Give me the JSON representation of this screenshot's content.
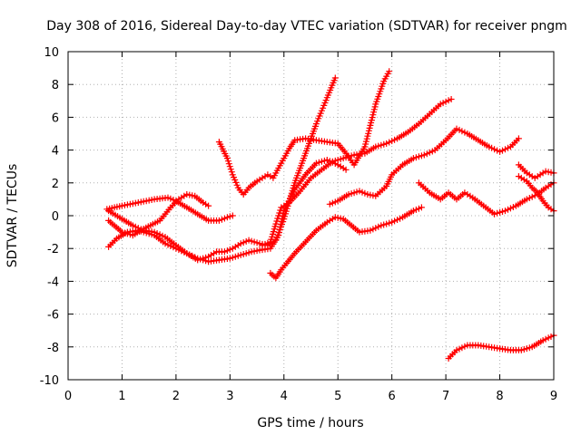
{
  "chart_data": {
    "type": "scatter",
    "title": "Day 308 of 2016, Sidereal Day-to-day VTEC variation (SDTVAR) for receiver pngm",
    "xlabel": "GPS time / hours",
    "ylabel": "SDTVAR / TECUs",
    "xlim": [
      0,
      9
    ],
    "ylim": [
      -10,
      10
    ],
    "xticks": [
      "0",
      "1",
      "2",
      "3",
      "4",
      "5",
      "6",
      "7",
      "8",
      "9"
    ],
    "yticks": [
      "-10",
      "-8",
      "-6",
      "-4",
      "-2",
      "0",
      "2",
      "4",
      "6",
      "8",
      "10"
    ],
    "grid": true,
    "marker_color": "#ff0000",
    "marker": "plus",
    "series": [
      {
        "points": [
          [
            0.72,
            0.4
          ],
          [
            1.0,
            0.6
          ],
          [
            1.3,
            0.8
          ],
          [
            1.6,
            1.0
          ],
          [
            1.85,
            1.1
          ],
          [
            2.0,
            0.9
          ],
          [
            2.2,
            0.5
          ],
          [
            2.4,
            0.1
          ],
          [
            2.6,
            -0.3
          ],
          [
            2.8,
            -0.3
          ],
          [
            2.95,
            -0.1
          ],
          [
            3.05,
            0.0
          ]
        ]
      },
      {
        "points": [
          [
            0.75,
            -0.3
          ],
          [
            1.0,
            -1.0
          ],
          [
            1.2,
            -1.2
          ],
          [
            1.4,
            -0.8
          ],
          [
            1.7,
            -0.3
          ],
          [
            1.9,
            0.5
          ],
          [
            2.05,
            1.0
          ],
          [
            2.2,
            1.3
          ],
          [
            2.35,
            1.2
          ],
          [
            2.5,
            0.8
          ],
          [
            2.6,
            0.6
          ]
        ]
      },
      {
        "points": [
          [
            0.75,
            -1.9
          ],
          [
            0.9,
            -1.4
          ],
          [
            1.1,
            -1.0
          ],
          [
            1.3,
            -0.9
          ],
          [
            1.6,
            -1.2
          ],
          [
            1.8,
            -1.7
          ],
          [
            2.0,
            -2.0
          ],
          [
            2.2,
            -2.3
          ],
          [
            2.4,
            -2.7
          ],
          [
            2.6,
            -2.5
          ],
          [
            2.75,
            -2.2
          ],
          [
            2.9,
            -2.2
          ],
          [
            3.05,
            -2.0
          ],
          [
            3.2,
            -1.7
          ],
          [
            3.35,
            -1.5
          ],
          [
            3.55,
            -1.7
          ],
          [
            3.7,
            -1.8
          ],
          [
            3.85,
            -1.5
          ],
          [
            4.0,
            -0.2
          ],
          [
            4.2,
            2.0
          ],
          [
            4.4,
            3.8
          ],
          [
            4.6,
            5.6
          ],
          [
            4.8,
            7.2
          ],
          [
            4.95,
            8.4
          ]
        ]
      },
      {
        "points": [
          [
            0.75,
            0.3
          ],
          [
            1.0,
            -0.2
          ],
          [
            1.2,
            -0.6
          ],
          [
            1.4,
            -0.9
          ],
          [
            1.6,
            -1.0
          ],
          [
            1.8,
            -1.3
          ],
          [
            2.0,
            -1.8
          ],
          [
            2.2,
            -2.3
          ],
          [
            2.4,
            -2.6
          ],
          [
            2.6,
            -2.8
          ],
          [
            2.8,
            -2.7
          ],
          [
            3.0,
            -2.6
          ],
          [
            3.2,
            -2.4
          ],
          [
            3.4,
            -2.2
          ],
          [
            3.55,
            -2.1
          ],
          [
            3.75,
            -2.0
          ],
          [
            3.9,
            -1.2
          ],
          [
            4.0,
            0.3
          ],
          [
            4.2,
            1.6
          ],
          [
            4.4,
            2.5
          ],
          [
            4.6,
            3.2
          ],
          [
            4.8,
            3.4
          ],
          [
            5.0,
            3.1
          ],
          [
            5.15,
            2.8
          ]
        ]
      },
      {
        "points": [
          [
            2.8,
            4.5
          ],
          [
            2.95,
            3.5
          ],
          [
            3.05,
            2.5
          ],
          [
            3.15,
            1.7
          ],
          [
            3.25,
            1.3
          ],
          [
            3.35,
            1.7
          ],
          [
            3.5,
            2.1
          ],
          [
            3.6,
            2.3
          ],
          [
            3.7,
            2.5
          ],
          [
            3.8,
            2.3
          ],
          [
            3.9,
            2.9
          ],
          [
            4.0,
            3.5
          ],
          [
            4.1,
            4.1
          ],
          [
            4.2,
            4.6
          ],
          [
            4.4,
            4.7
          ],
          [
            4.6,
            4.6
          ],
          [
            4.8,
            4.5
          ],
          [
            5.0,
            4.4
          ],
          [
            5.15,
            3.8
          ],
          [
            5.3,
            3.1
          ],
          [
            5.5,
            4.2
          ],
          [
            5.7,
            6.8
          ],
          [
            5.85,
            8.2
          ],
          [
            5.95,
            8.8
          ]
        ]
      },
      {
        "points": [
          [
            3.6,
            -1.8
          ],
          [
            3.75,
            -1.6
          ],
          [
            3.85,
            -0.5
          ],
          [
            3.95,
            0.5
          ],
          [
            4.1,
            0.8
          ],
          [
            4.3,
            1.5
          ],
          [
            4.5,
            2.3
          ],
          [
            4.7,
            2.8
          ],
          [
            4.9,
            3.3
          ],
          [
            5.1,
            3.5
          ],
          [
            5.3,
            3.7
          ],
          [
            5.5,
            3.8
          ],
          [
            5.7,
            4.2
          ],
          [
            5.9,
            4.4
          ],
          [
            6.1,
            4.7
          ],
          [
            6.3,
            5.1
          ],
          [
            6.5,
            5.6
          ],
          [
            6.7,
            6.2
          ],
          [
            6.9,
            6.8
          ],
          [
            7.1,
            7.1
          ]
        ]
      },
      {
        "points": [
          [
            3.75,
            -3.5
          ],
          [
            3.85,
            -3.8
          ],
          [
            3.95,
            -3.3
          ],
          [
            4.05,
            -2.9
          ],
          [
            4.2,
            -2.3
          ],
          [
            4.4,
            -1.6
          ],
          [
            4.6,
            -0.9
          ],
          [
            4.8,
            -0.4
          ],
          [
            4.95,
            -0.1
          ],
          [
            5.1,
            -0.2
          ],
          [
            5.25,
            -0.6
          ],
          [
            5.4,
            -1.0
          ],
          [
            5.6,
            -0.9
          ],
          [
            5.8,
            -0.6
          ],
          [
            6.0,
            -0.4
          ],
          [
            6.2,
            -0.1
          ],
          [
            6.4,
            0.3
          ],
          [
            6.55,
            0.5
          ]
        ]
      },
      {
        "points": [
          [
            4.85,
            0.7
          ],
          [
            5.0,
            0.9
          ],
          [
            5.2,
            1.3
          ],
          [
            5.4,
            1.5
          ],
          [
            5.55,
            1.3
          ],
          [
            5.7,
            1.2
          ],
          [
            5.9,
            1.8
          ],
          [
            6.0,
            2.5
          ],
          [
            6.2,
            3.1
          ],
          [
            6.4,
            3.5
          ],
          [
            6.6,
            3.7
          ],
          [
            6.8,
            4.0
          ],
          [
            7.0,
            4.6
          ],
          [
            7.2,
            5.3
          ],
          [
            7.4,
            5.0
          ],
          [
            7.6,
            4.6
          ],
          [
            7.8,
            4.2
          ],
          [
            8.0,
            3.9
          ],
          [
            8.2,
            4.2
          ],
          [
            8.35,
            4.7
          ]
        ]
      },
      {
        "points": [
          [
            6.5,
            2.0
          ],
          [
            6.7,
            1.4
          ],
          [
            6.9,
            1.0
          ],
          [
            7.05,
            1.4
          ],
          [
            7.2,
            1.0
          ],
          [
            7.35,
            1.4
          ],
          [
            7.5,
            1.1
          ],
          [
            7.7,
            0.6
          ],
          [
            7.9,
            0.1
          ],
          [
            8.1,
            0.3
          ],
          [
            8.3,
            0.6
          ],
          [
            8.5,
            1.0
          ],
          [
            8.7,
            1.3
          ],
          [
            8.85,
            1.7
          ],
          [
            9.0,
            2.0
          ]
        ]
      },
      {
        "points": [
          [
            8.35,
            3.1
          ],
          [
            8.5,
            2.6
          ],
          [
            8.65,
            2.3
          ],
          [
            8.75,
            2.5
          ],
          [
            8.85,
            2.7
          ],
          [
            9.0,
            2.6
          ]
        ]
      },
      {
        "points": [
          [
            8.35,
            2.4
          ],
          [
            8.5,
            2.1
          ],
          [
            8.6,
            1.7
          ],
          [
            8.7,
            1.4
          ],
          [
            8.8,
            0.9
          ],
          [
            8.9,
            0.5
          ],
          [
            9.0,
            0.3
          ]
        ]
      },
      {
        "points": [
          [
            7.05,
            -8.7
          ],
          [
            7.2,
            -8.2
          ],
          [
            7.4,
            -7.9
          ],
          [
            7.6,
            -7.9
          ],
          [
            7.8,
            -8.0
          ],
          [
            8.0,
            -8.1
          ],
          [
            8.2,
            -8.2
          ],
          [
            8.4,
            -8.2
          ],
          [
            8.6,
            -8.0
          ],
          [
            8.8,
            -7.6
          ],
          [
            9.0,
            -7.3
          ]
        ]
      }
    ]
  }
}
